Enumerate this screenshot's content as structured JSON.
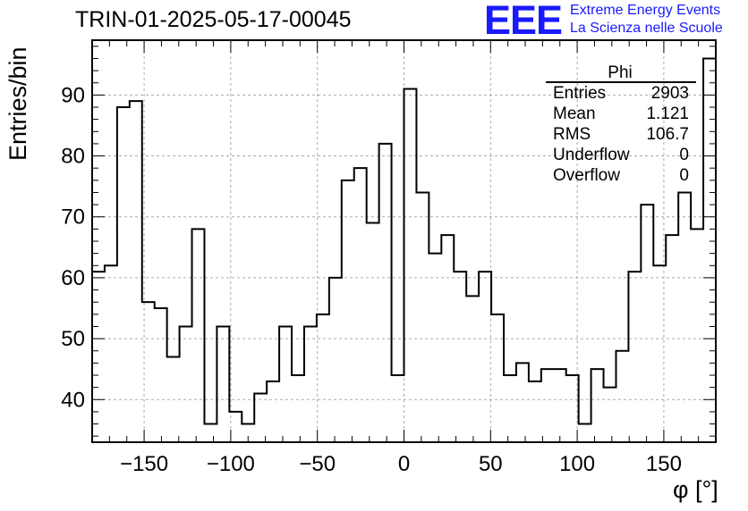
{
  "title": "TRIN-01-2025-05-17-00045",
  "logo": {
    "mark": "EEE",
    "line1": "Extreme Energy Events",
    "line2": "La Scienza nelle Scuole"
  },
  "stats": {
    "name": "Phi",
    "rows": [
      {
        "label": "Entries",
        "value": "2903"
      },
      {
        "label": "Mean",
        "value": "1.121"
      },
      {
        "label": "RMS",
        "value": "106.7"
      },
      {
        "label": "Underflow",
        "value": "0"
      },
      {
        "label": "Overflow",
        "value": "0"
      }
    ]
  },
  "chart_data": {
    "type": "bar",
    "style": "step-histogram",
    "xlabel": "φ [°]",
    "ylabel": "Entries/bin",
    "xlim": [
      -180,
      180
    ],
    "ylim": [
      33,
      99
    ],
    "bin_width": 7.2,
    "grid": true,
    "x_ticks": [
      -150,
      -100,
      -50,
      0,
      50,
      100,
      150
    ],
    "x_tick_labels": [
      "−150",
      "−100",
      "−50",
      "0",
      "50",
      "100",
      "150"
    ],
    "y_ticks": [
      40,
      50,
      60,
      70,
      80,
      90
    ],
    "y_tick_labels": [
      "40",
      "50",
      "60",
      "70",
      "80",
      "90"
    ],
    "values": [
      61,
      62,
      88,
      89,
      56,
      55,
      47,
      52,
      68,
      36,
      52,
      38,
      36,
      41,
      43,
      52,
      44,
      52,
      54,
      60,
      76,
      78,
      69,
      82,
      44,
      91,
      74,
      64,
      67,
      61,
      57,
      61,
      54,
      44,
      46,
      43,
      45,
      45,
      44,
      36,
      45,
      42,
      48,
      61,
      72,
      62,
      67,
      74,
      68,
      96
    ]
  },
  "colors": {
    "line": "#000000",
    "grid": "#aaaaaa",
    "logo": "#1a1aff"
  }
}
